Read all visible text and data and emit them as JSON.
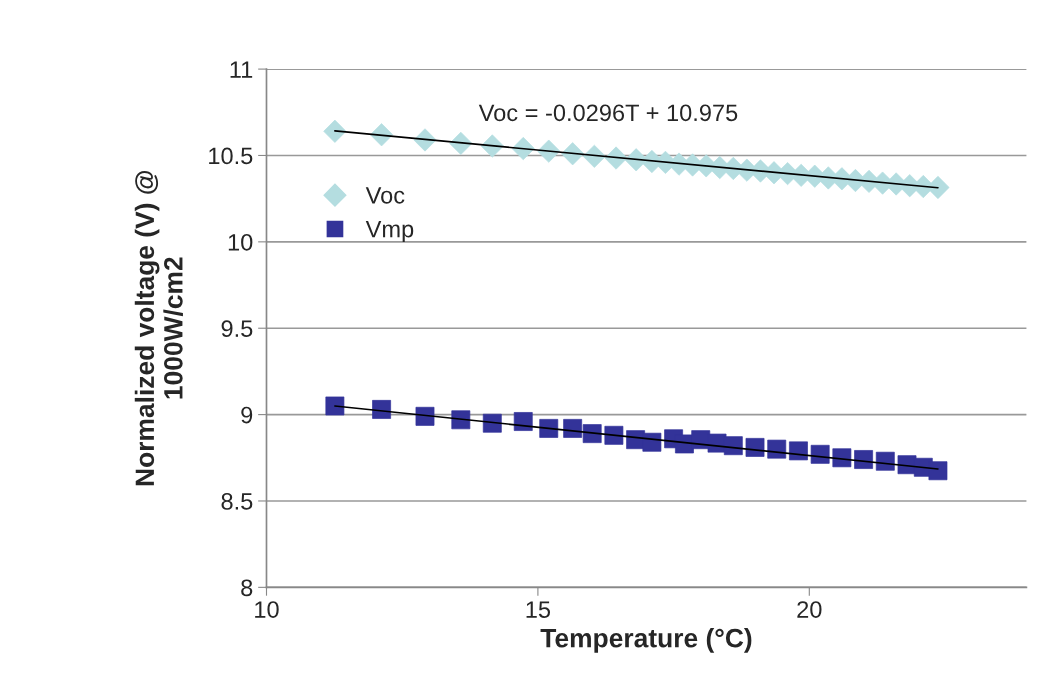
{
  "chart_data": {
    "type": "scatter",
    "xlabel": "Temperature (°C)",
    "ylabel": "Normalized voltage (V) @\n1000W/cm2",
    "xlim": [
      10,
      24
    ],
    "xticks": [
      10,
      15,
      20
    ],
    "ylim": [
      8,
      11
    ],
    "yticks": [
      8,
      8.5,
      9,
      9.5,
      10,
      10.5,
      11
    ],
    "grid": "y",
    "legend": "left",
    "annotations": [
      "Voc = -0.0296T + 10.975"
    ],
    "series": [
      {
        "name": "Voc",
        "marker": "diamond",
        "color": "#b4dde0",
        "x": [
          11.26,
          12.12,
          12.92,
          13.58,
          14.16,
          14.73,
          15.2,
          15.64,
          16.04,
          16.44,
          16.81,
          17.1,
          17.35,
          17.6,
          17.85,
          18.1,
          18.35,
          18.6,
          18.85,
          19.1,
          19.35,
          19.6,
          19.85,
          20.1,
          20.35,
          20.6,
          20.85,
          21.1,
          21.35,
          21.6,
          21.85,
          22.1,
          22.37
        ],
        "values": [
          10.64,
          10.62,
          10.59,
          10.57,
          10.555,
          10.54,
          10.525,
          10.51,
          10.495,
          10.485,
          10.475,
          10.465,
          10.46,
          10.45,
          10.445,
          10.44,
          10.43,
          10.425,
          10.415,
          10.41,
          10.4,
          10.395,
          10.385,
          10.38,
          10.37,
          10.365,
          10.355,
          10.35,
          10.34,
          10.335,
          10.325,
          10.32,
          10.315
        ]
      },
      {
        "name": "Vmp",
        "marker": "square",
        "color": "#333399",
        "x": [
          11.26,
          12.12,
          12.92,
          13.58,
          14.16,
          14.73,
          15.2,
          15.64,
          16.0,
          16.4,
          16.8,
          17.1,
          17.5,
          17.7,
          18.0,
          18.3,
          18.6,
          19.0,
          19.4,
          19.8,
          20.2,
          20.6,
          21.0,
          21.4,
          21.8,
          22.1,
          22.37
        ],
        "values": [
          9.05,
          9.03,
          8.99,
          8.97,
          8.95,
          8.96,
          8.92,
          8.92,
          8.89,
          8.88,
          8.855,
          8.84,
          8.86,
          8.83,
          8.855,
          8.835,
          8.82,
          8.81,
          8.8,
          8.79,
          8.77,
          8.75,
          8.74,
          8.73,
          8.71,
          8.695,
          8.675
        ]
      },
      {
        "type": "line",
        "marker": "none",
        "color": "#000000",
        "x": [
          11.26,
          22.37
        ],
        "values": [
          10.642,
          10.313
        ]
      },
      {
        "type": "line",
        "marker": "none",
        "color": "#000000",
        "x": [
          11.26,
          22.37
        ],
        "values": [
          9.05,
          8.685
        ]
      }
    ]
  }
}
